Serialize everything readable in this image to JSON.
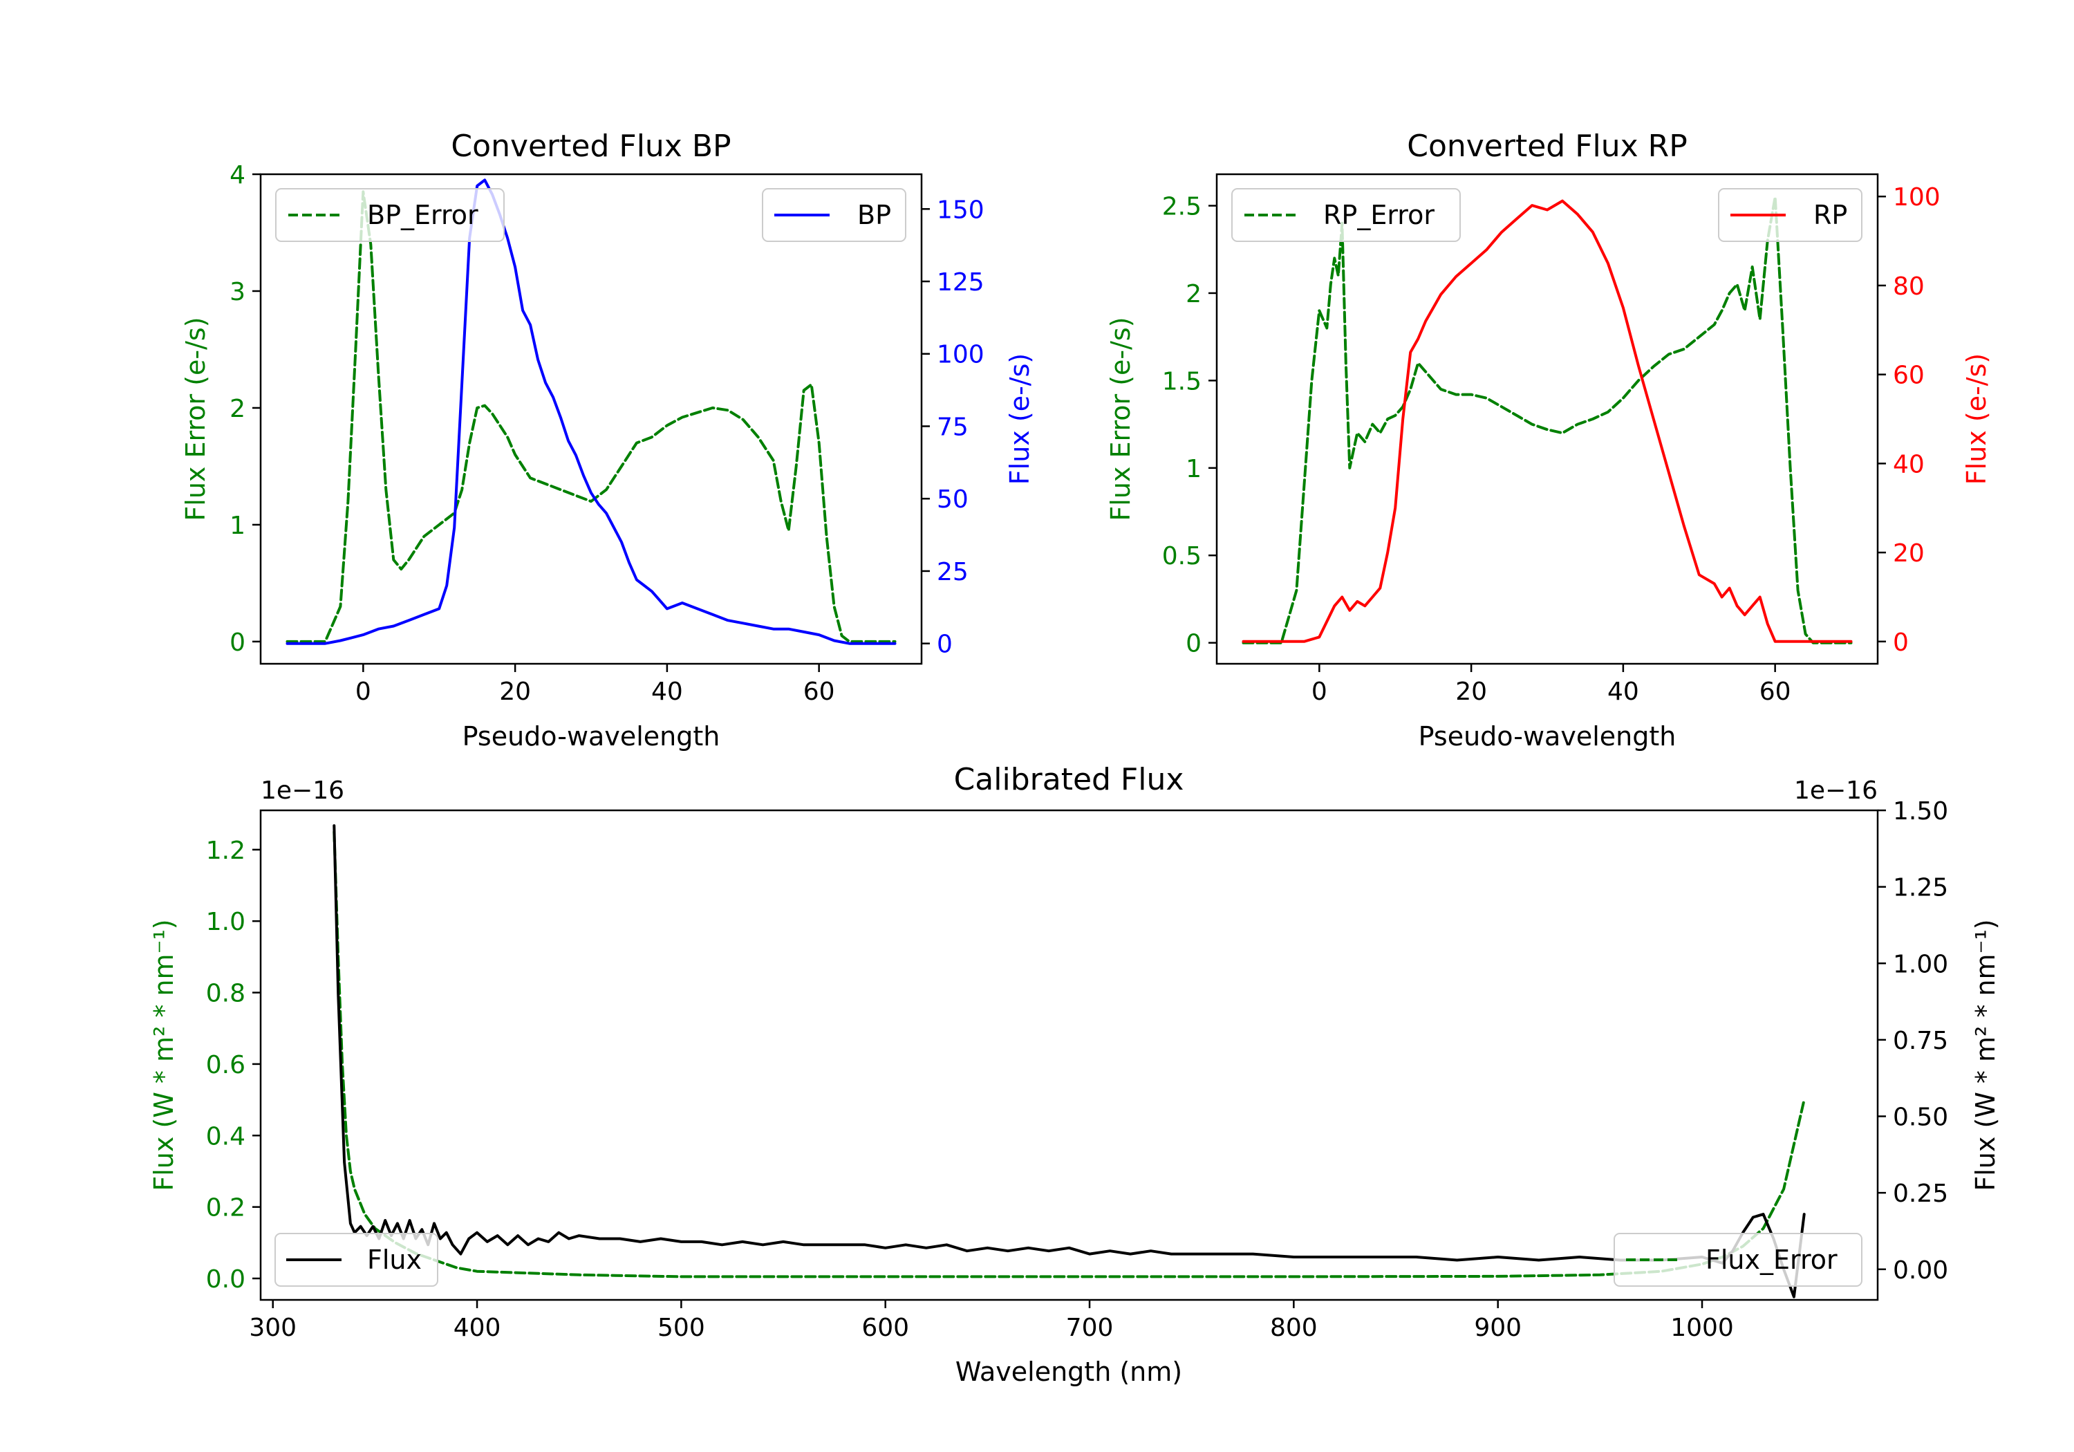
{
  "colors": {
    "error": "#008000",
    "bp": "#0000ff",
    "rp": "#ff0000",
    "flux": "#000000",
    "axis": "#000000"
  },
  "chart_data": [
    {
      "id": "bp",
      "type": "line",
      "title": "Converted Flux BP",
      "xlabel": "Pseudo-wavelength",
      "ylabel_left": "Flux Error (e-/s)",
      "ylabel_right": "Flux (e-/s)",
      "xlim": [
        -13.5,
        73.5
      ],
      "ylim_left": [
        -0.19,
        4.0
      ],
      "ylim_right": [
        -7,
        162
      ],
      "xticks": [
        0,
        20,
        40,
        60
      ],
      "yticks_left": [
        0,
        1,
        2,
        3,
        4
      ],
      "yticks_right": [
        0,
        25,
        50,
        75,
        100,
        125,
        150
      ],
      "legend_left": "BP_Error",
      "legend_right": "BP",
      "series": [
        {
          "name": "BP_Error",
          "axis": "left",
          "style": "dashed",
          "color": "#008000",
          "x": [
            -10,
            -5,
            -3,
            -2,
            -1,
            0,
            1,
            2,
            3,
            4,
            5,
            6,
            7,
            8,
            9,
            10,
            11,
            12,
            13,
            14,
            15,
            16,
            17,
            18,
            19,
            20,
            21,
            22,
            24,
            26,
            28,
            30,
            32,
            34,
            36,
            38,
            40,
            42,
            44,
            46,
            48,
            50,
            52,
            54,
            55,
            56,
            57,
            58,
            59,
            60,
            61,
            62,
            63,
            64,
            65,
            70
          ],
          "y": [
            0,
            0,
            0.3,
            1.2,
            2.5,
            3.85,
            3.4,
            2.3,
            1.3,
            0.7,
            0.62,
            0.7,
            0.8,
            0.9,
            0.95,
            1.0,
            1.05,
            1.1,
            1.3,
            1.7,
            2.0,
            2.02,
            1.95,
            1.85,
            1.75,
            1.6,
            1.5,
            1.4,
            1.35,
            1.3,
            1.25,
            1.2,
            1.3,
            1.5,
            1.7,
            1.75,
            1.85,
            1.92,
            1.96,
            2.0,
            1.98,
            1.9,
            1.75,
            1.55,
            1.2,
            0.95,
            1.5,
            2.15,
            2.2,
            1.7,
            0.9,
            0.3,
            0.05,
            0,
            0,
            0
          ]
        },
        {
          "name": "BP",
          "axis": "right",
          "style": "solid",
          "color": "#0000ff",
          "x": [
            -10,
            -5,
            -3,
            0,
            2,
            4,
            6,
            8,
            10,
            11,
            12,
            13,
            14,
            15,
            16,
            17,
            18,
            19,
            20,
            21,
            22,
            23,
            24,
            25,
            26,
            27,
            28,
            29,
            30,
            31,
            32,
            33,
            34,
            35,
            36,
            37,
            38,
            39,
            40,
            42,
            44,
            46,
            48,
            50,
            52,
            54,
            56,
            58,
            60,
            62,
            64,
            70
          ],
          "y": [
            0,
            0,
            1,
            3,
            5,
            6,
            8,
            10,
            12,
            20,
            40,
            90,
            140,
            158,
            160,
            155,
            148,
            140,
            130,
            115,
            110,
            98,
            90,
            85,
            78,
            70,
            65,
            58,
            52,
            48,
            45,
            40,
            35,
            28,
            22,
            20,
            18,
            15,
            12,
            14,
            12,
            10,
            8,
            7,
            6,
            5,
            5,
            4,
            3,
            1,
            0,
            0
          ]
        }
      ]
    },
    {
      "id": "rp",
      "type": "line",
      "title": "Converted Flux RP",
      "xlabel": "Pseudo-wavelength",
      "ylabel_left": "Flux Error (e-/s)",
      "ylabel_right": "Flux (e-/s)",
      "xlim": [
        -13.5,
        73.5
      ],
      "ylim_left": [
        -0.12,
        2.68
      ],
      "ylim_right": [
        -5,
        105
      ],
      "xticks": [
        0,
        20,
        40,
        60
      ],
      "yticks_left": [
        0.0,
        0.5,
        1.0,
        1.5,
        2.0,
        2.5
      ],
      "yticks_right": [
        0,
        20,
        40,
        60,
        80,
        100
      ],
      "legend_left": "RP_Error",
      "legend_right": "RP",
      "series": [
        {
          "name": "RP_Error",
          "axis": "left",
          "style": "dashed",
          "color": "#008000",
          "x": [
            -10,
            -5,
            -3,
            -2,
            -1,
            0,
            1,
            1.5,
            2,
            2.5,
            3,
            3.5,
            4,
            5,
            6,
            7,
            8,
            9,
            10,
            11,
            12,
            13,
            14,
            16,
            18,
            20,
            22,
            24,
            26,
            28,
            30,
            32,
            34,
            36,
            38,
            40,
            42,
            44,
            46,
            48,
            50,
            52,
            53,
            54,
            55,
            56,
            57,
            58,
            59,
            60,
            61,
            62,
            63,
            64,
            65,
            70
          ],
          "y": [
            0,
            0,
            0.3,
            0.9,
            1.5,
            1.9,
            1.8,
            2.05,
            2.2,
            2.1,
            2.4,
            1.6,
            1.0,
            1.2,
            1.15,
            1.25,
            1.2,
            1.28,
            1.3,
            1.35,
            1.45,
            1.6,
            1.55,
            1.45,
            1.42,
            1.42,
            1.4,
            1.35,
            1.3,
            1.25,
            1.22,
            1.2,
            1.25,
            1.28,
            1.32,
            1.4,
            1.5,
            1.58,
            1.65,
            1.68,
            1.75,
            1.82,
            1.9,
            2.0,
            2.05,
            1.9,
            2.15,
            1.85,
            2.3,
            2.55,
            1.8,
            1.0,
            0.3,
            0.05,
            0,
            0
          ]
        },
        {
          "name": "RP",
          "axis": "right",
          "style": "solid",
          "color": "#ff0000",
          "x": [
            -10,
            -5,
            -2,
            0,
            2,
            3,
            4,
            5,
            6,
            7,
            8,
            9,
            10,
            11,
            12,
            13,
            14,
            15,
            16,
            18,
            20,
            22,
            24,
            26,
            28,
            30,
            32,
            34,
            36,
            38,
            40,
            42,
            44,
            46,
            48,
            50,
            52,
            53,
            54,
            55,
            56,
            57,
            58,
            59,
            60,
            62,
            64,
            70
          ],
          "y": [
            0,
            0,
            0,
            1,
            8,
            10,
            7,
            9,
            8,
            10,
            12,
            20,
            30,
            50,
            65,
            68,
            72,
            75,
            78,
            82,
            85,
            88,
            92,
            95,
            98,
            97,
            99,
            96,
            92,
            85,
            75,
            62,
            50,
            38,
            26,
            15,
            13,
            10,
            12,
            8,
            6,
            8,
            10,
            4,
            0,
            0,
            0,
            0
          ]
        }
      ]
    },
    {
      "id": "calibrated",
      "type": "line",
      "title": "Calibrated Flux",
      "xlabel": "Wavelength (nm)",
      "ylabel_left": "Flux (W * m² * nm⁻¹)",
      "ylabel_right": "Flux (W * m² * nm⁻¹)",
      "offset_left": "1e−16",
      "offset_right": "1e−16",
      "xlim": [
        294,
        1086
      ],
      "ylim_left": [
        -0.06,
        1.31
      ],
      "ylim_right": [
        -0.1,
        1.5
      ],
      "xticks": [
        300,
        400,
        500,
        600,
        700,
        800,
        900,
        1000
      ],
      "yticks_left": [
        0.0,
        0.2,
        0.4,
        0.6,
        0.8,
        1.0,
        1.2
      ],
      "yticks_left_labels": [
        "0.0",
        "0.2",
        "0.4",
        "0.6",
        "0.8",
        "1.0",
        "1.2"
      ],
      "yticks_right": [
        0.0,
        0.25,
        0.5,
        0.75,
        1.0,
        1.25,
        1.5
      ],
      "yticks_right_labels": [
        "0.00",
        "0.25",
        "0.50",
        "0.75",
        "1.00",
        "1.25",
        "1.50"
      ],
      "legend_left": "Flux",
      "legend_right": "Flux_Error",
      "series": [
        {
          "name": "Flux_Error",
          "axis": "left",
          "style": "dashed",
          "color": "#008000",
          "x": [
            330,
            332,
            334,
            336,
            338,
            340,
            345,
            350,
            360,
            370,
            380,
            390,
            400,
            450,
            500,
            600,
            700,
            800,
            900,
            950,
            980,
            1000,
            1010,
            1020,
            1030,
            1040,
            1050
          ],
          "y": [
            1.25,
            0.9,
            0.6,
            0.4,
            0.3,
            0.25,
            0.18,
            0.14,
            0.1,
            0.07,
            0.05,
            0.03,
            0.02,
            0.01,
            0.005,
            0.005,
            0.005,
            0.005,
            0.006,
            0.01,
            0.02,
            0.04,
            0.06,
            0.09,
            0.14,
            0.25,
            0.5
          ]
        },
        {
          "name": "Flux",
          "axis": "right",
          "style": "solid",
          "color": "#000000",
          "x": [
            330,
            332,
            335,
            338,
            340,
            343,
            346,
            349,
            352,
            355,
            358,
            361,
            364,
            367,
            370,
            373,
            376,
            379,
            382,
            385,
            388,
            392,
            396,
            400,
            405,
            410,
            415,
            420,
            425,
            430,
            435,
            440,
            445,
            450,
            460,
            470,
            480,
            490,
            500,
            510,
            520,
            530,
            540,
            550,
            560,
            570,
            580,
            590,
            600,
            610,
            620,
            630,
            640,
            650,
            660,
            670,
            680,
            690,
            700,
            710,
            720,
            730,
            740,
            750,
            760,
            780,
            800,
            820,
            840,
            860,
            880,
            900,
            920,
            940,
            960,
            980,
            1000,
            1005,
            1010,
            1015,
            1020,
            1025,
            1030,
            1035,
            1040,
            1045,
            1050
          ],
          "y": [
            1.45,
            0.9,
            0.35,
            0.15,
            0.12,
            0.14,
            0.11,
            0.14,
            0.1,
            0.16,
            0.11,
            0.15,
            0.1,
            0.16,
            0.1,
            0.13,
            0.08,
            0.15,
            0.1,
            0.12,
            0.08,
            0.05,
            0.1,
            0.12,
            0.09,
            0.11,
            0.08,
            0.11,
            0.08,
            0.1,
            0.09,
            0.12,
            0.1,
            0.11,
            0.1,
            0.1,
            0.09,
            0.1,
            0.09,
            0.09,
            0.08,
            0.09,
            0.08,
            0.09,
            0.08,
            0.08,
            0.08,
            0.08,
            0.07,
            0.08,
            0.07,
            0.08,
            0.06,
            0.07,
            0.06,
            0.07,
            0.06,
            0.07,
            0.05,
            0.06,
            0.05,
            0.06,
            0.05,
            0.05,
            0.05,
            0.05,
            0.04,
            0.04,
            0.04,
            0.04,
            0.03,
            0.04,
            0.03,
            0.04,
            0.03,
            0.03,
            0.04,
            0.03,
            0.02,
            0.06,
            0.12,
            0.17,
            0.18,
            0.1,
            0.0,
            -0.09,
            0.18
          ]
        }
      ]
    }
  ]
}
